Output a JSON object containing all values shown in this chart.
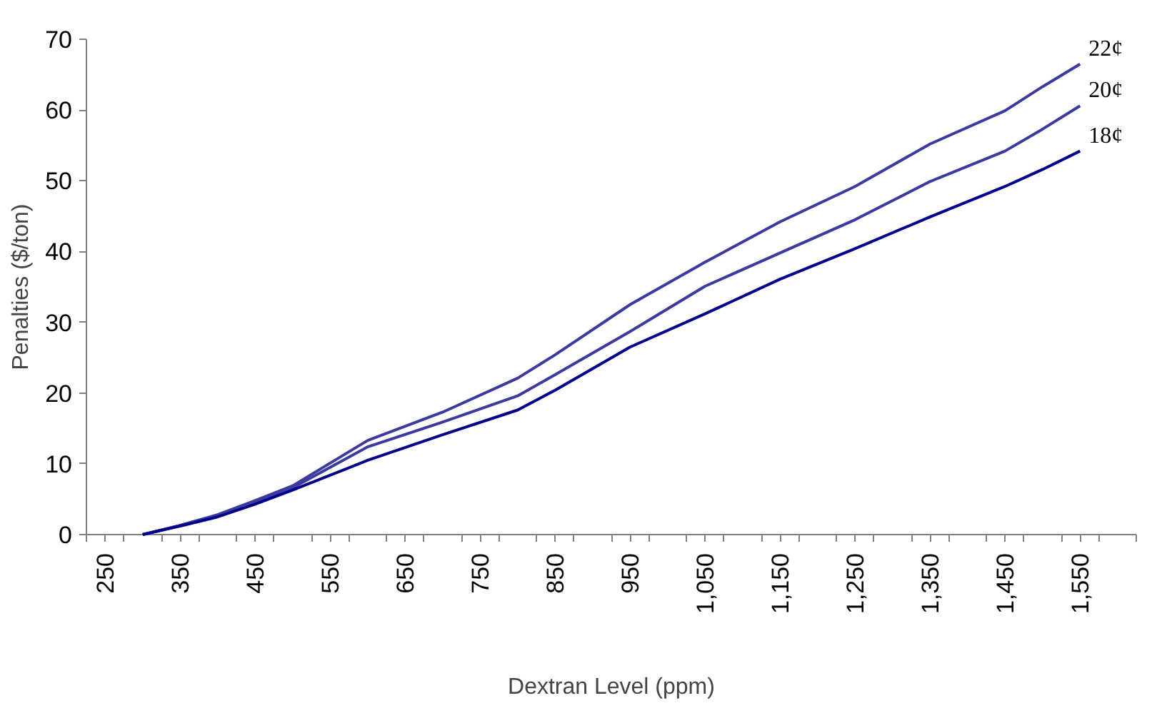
{
  "chart_data": {
    "type": "line",
    "xlabel": "Dextran Level (ppm)",
    "ylabel": "Penalties ($/ton)",
    "x": [
      300,
      350,
      400,
      450,
      500,
      600,
      700,
      800,
      850,
      950,
      1050,
      1150,
      1250,
      1350,
      1450,
      1500,
      1550
    ],
    "series": [
      {
        "name": "22¢",
        "color": "#3b3b9f",
        "values": [
          0,
          1.3,
          2.8,
          4.8,
          6.9,
          13.3,
          17.3,
          22.1,
          25.4,
          32.5,
          38.5,
          44.2,
          49.2,
          55.2,
          59.9,
          63.3,
          66.5
        ]
      },
      {
        "name": "20¢",
        "color": "#3b3b9f",
        "values": [
          0,
          1.3,
          2.7,
          4.6,
          6.6,
          12.4,
          15.9,
          19.6,
          22.6,
          28.7,
          35.1,
          39.8,
          44.5,
          49.9,
          54.2,
          57.3,
          60.6
        ]
      },
      {
        "name": "18¢",
        "color": "#00008b",
        "values": [
          0,
          1.2,
          2.5,
          4.3,
          6.3,
          10.5,
          14.1,
          17.6,
          20.4,
          26.5,
          31.2,
          36.1,
          40.4,
          44.9,
          49.2,
          51.6,
          54.2
        ]
      }
    ],
    "xlim": [
      225,
      1625
    ],
    "xticks": [
      {
        "value": 225,
        "label": null
      },
      {
        "value": 250,
        "label": "250"
      },
      {
        "value": 275,
        "label": null
      },
      {
        "value": 325,
        "label": null
      },
      {
        "value": 350,
        "label": "350"
      },
      {
        "value": 375,
        "label": null
      },
      {
        "value": 425,
        "label": null
      },
      {
        "value": 450,
        "label": "450"
      },
      {
        "value": 475,
        "label": null
      },
      {
        "value": 525,
        "label": null
      },
      {
        "value": 550,
        "label": "550"
      },
      {
        "value": 575,
        "label": null
      },
      {
        "value": 625,
        "label": null
      },
      {
        "value": 650,
        "label": "650"
      },
      {
        "value": 675,
        "label": null
      },
      {
        "value": 725,
        "label": null
      },
      {
        "value": 750,
        "label": "750"
      },
      {
        "value": 775,
        "label": null
      },
      {
        "value": 825,
        "label": null
      },
      {
        "value": 850,
        "label": "850"
      },
      {
        "value": 875,
        "label": null
      },
      {
        "value": 925,
        "label": null
      },
      {
        "value": 950,
        "label": "950"
      },
      {
        "value": 975,
        "label": null
      },
      {
        "value": 1025,
        "label": null
      },
      {
        "value": 1050,
        "label": "1,050"
      },
      {
        "value": 1075,
        "label": null
      },
      {
        "value": 1125,
        "label": null
      },
      {
        "value": 1150,
        "label": "1,150"
      },
      {
        "value": 1175,
        "label": null
      },
      {
        "value": 1225,
        "label": null
      },
      {
        "value": 1250,
        "label": "1,250"
      },
      {
        "value": 1275,
        "label": null
      },
      {
        "value": 1325,
        "label": null
      },
      {
        "value": 1350,
        "label": "1,350"
      },
      {
        "value": 1375,
        "label": null
      },
      {
        "value": 1425,
        "label": null
      },
      {
        "value": 1450,
        "label": "1,450"
      },
      {
        "value": 1475,
        "label": null
      },
      {
        "value": 1525,
        "label": null
      },
      {
        "value": 1550,
        "label": "1,550"
      },
      {
        "value": 1575,
        "label": null
      },
      {
        "value": 1625,
        "label": null
      }
    ],
    "ylim": [
      0,
      70
    ],
    "yticks": [
      0,
      10,
      20,
      30,
      40,
      50,
      60,
      70
    ],
    "grid": false,
    "marker": "none",
    "line_style": "solid"
  }
}
